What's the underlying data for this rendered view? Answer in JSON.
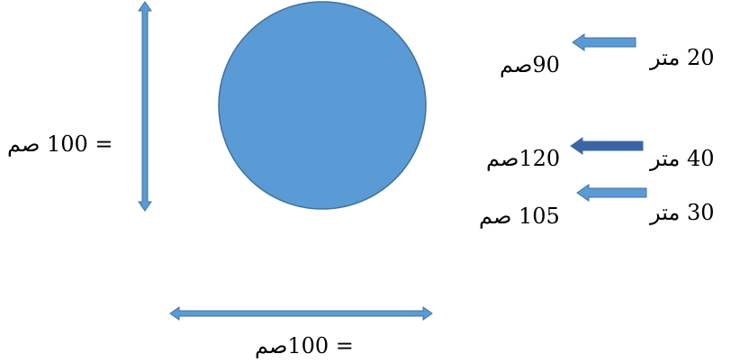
{
  "dimensions": {
    "height_label": "= 100 صم",
    "width_label": "= 100صم"
  },
  "measurements": [
    {
      "distance": "20 متر",
      "size": "90صم"
    },
    {
      "distance": "40 متر",
      "size": "120صم"
    },
    {
      "distance": "30 متر",
      "size": "105 صم"
    }
  ],
  "colors": {
    "circle_fill": "#5b9bd5",
    "circle_stroke": "#41719c",
    "arrow_fill": "#5b9bd5",
    "arrow_fill_dark": "#3a64a3",
    "arrow_stroke": "#41719c"
  }
}
